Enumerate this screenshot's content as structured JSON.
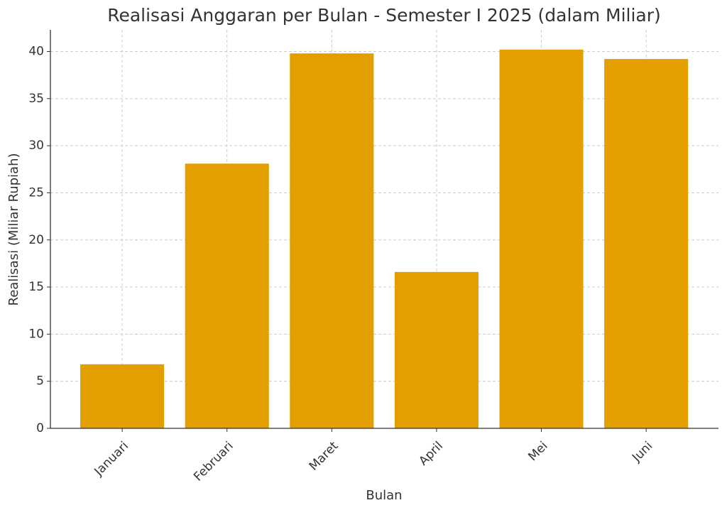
{
  "chart_data": {
    "type": "bar",
    "title": "Realisasi Anggaran per Bulan - Semester I 2025 (dalam Miliar)",
    "x_label": "Bulan",
    "y_label": "Realisasi (Miliar Rupiah)",
    "categories": [
      "Januari",
      "Februari",
      "Maret",
      "April",
      "Mei",
      "Juni"
    ],
    "values": [
      6.8,
      28.1,
      39.8,
      16.6,
      40.2,
      39.2
    ],
    "color": "#e39f00",
    "ylim": [
      0,
      42.3
    ],
    "yticks": [
      0,
      5,
      10,
      15,
      20,
      25,
      30,
      35,
      40
    ],
    "grid": true
  }
}
